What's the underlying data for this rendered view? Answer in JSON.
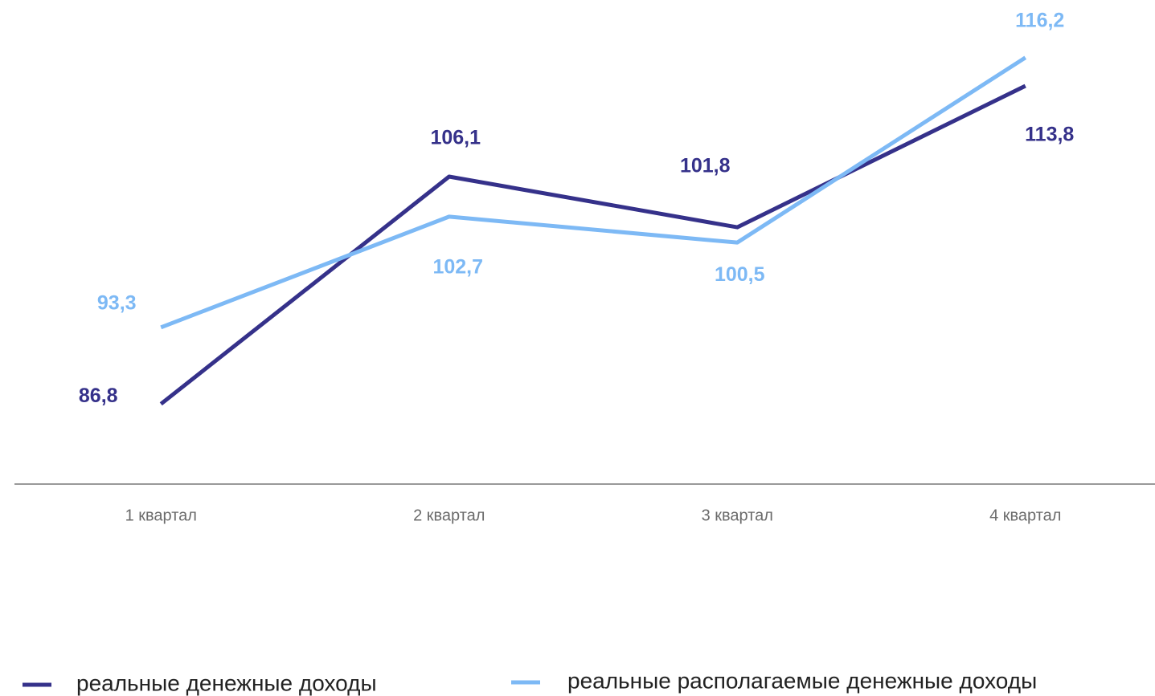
{
  "chart_data": {
    "type": "line",
    "categories": [
      "1 квартал",
      "2 квартал",
      "3 квартал",
      "4 квартал"
    ],
    "series": [
      {
        "name": "реальные денежные доходы",
        "color": "#35318a",
        "values": [
          86.8,
          106.1,
          101.8,
          113.8
        ],
        "value_labels": [
          "86,8",
          "106,1",
          "101,8",
          "113,8"
        ]
      },
      {
        "name": "реальные располагаемые денежные доходы",
        "color": "#7db9f5",
        "values": [
          93.3,
          102.7,
          100.5,
          116.2
        ],
        "value_labels": [
          "93,3",
          "102,7",
          "100,5",
          "116,2"
        ]
      }
    ],
    "ylim": [
      80,
      120
    ],
    "grid": false
  }
}
